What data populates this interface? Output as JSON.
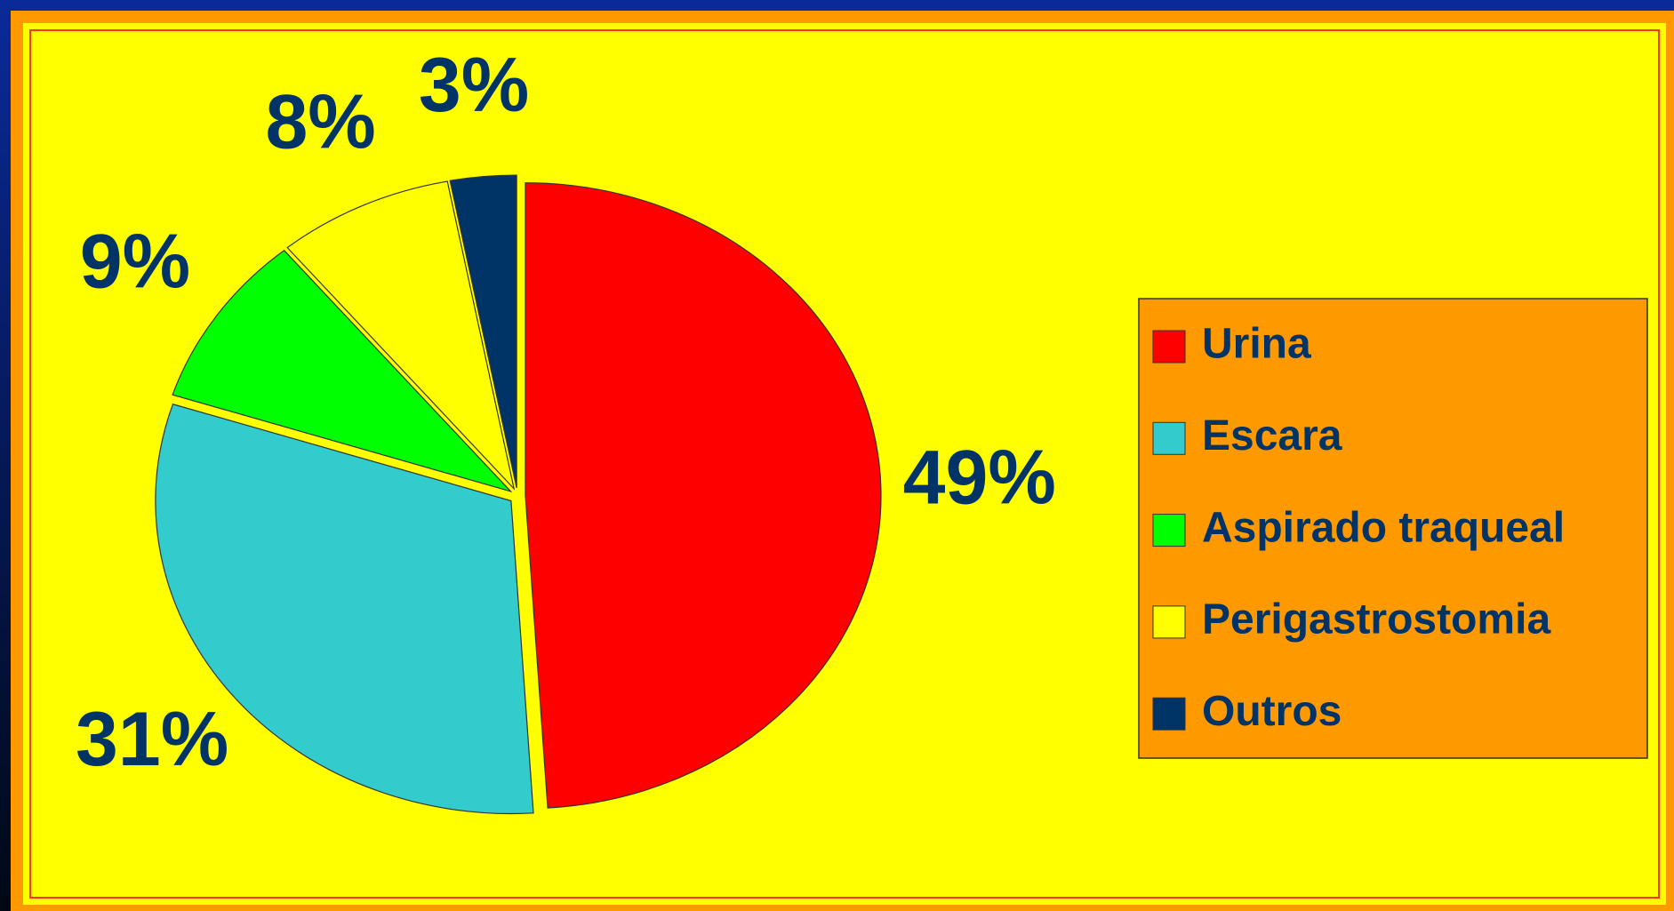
{
  "chart_data": {
    "type": "pie",
    "categories": [
      "Urina",
      "Escara",
      "Aspirado traqueal",
      "Perigastrostomia",
      "Outros"
    ],
    "values": [
      49,
      31,
      9,
      8,
      3
    ],
    "value_labels": [
      "49%",
      "31%",
      "9%",
      "8%",
      "3%"
    ],
    "colors": [
      "#ff0000",
      "#33cccc",
      "#00ff00",
      "#ffff00",
      "#003366"
    ],
    "legend": "right"
  }
}
